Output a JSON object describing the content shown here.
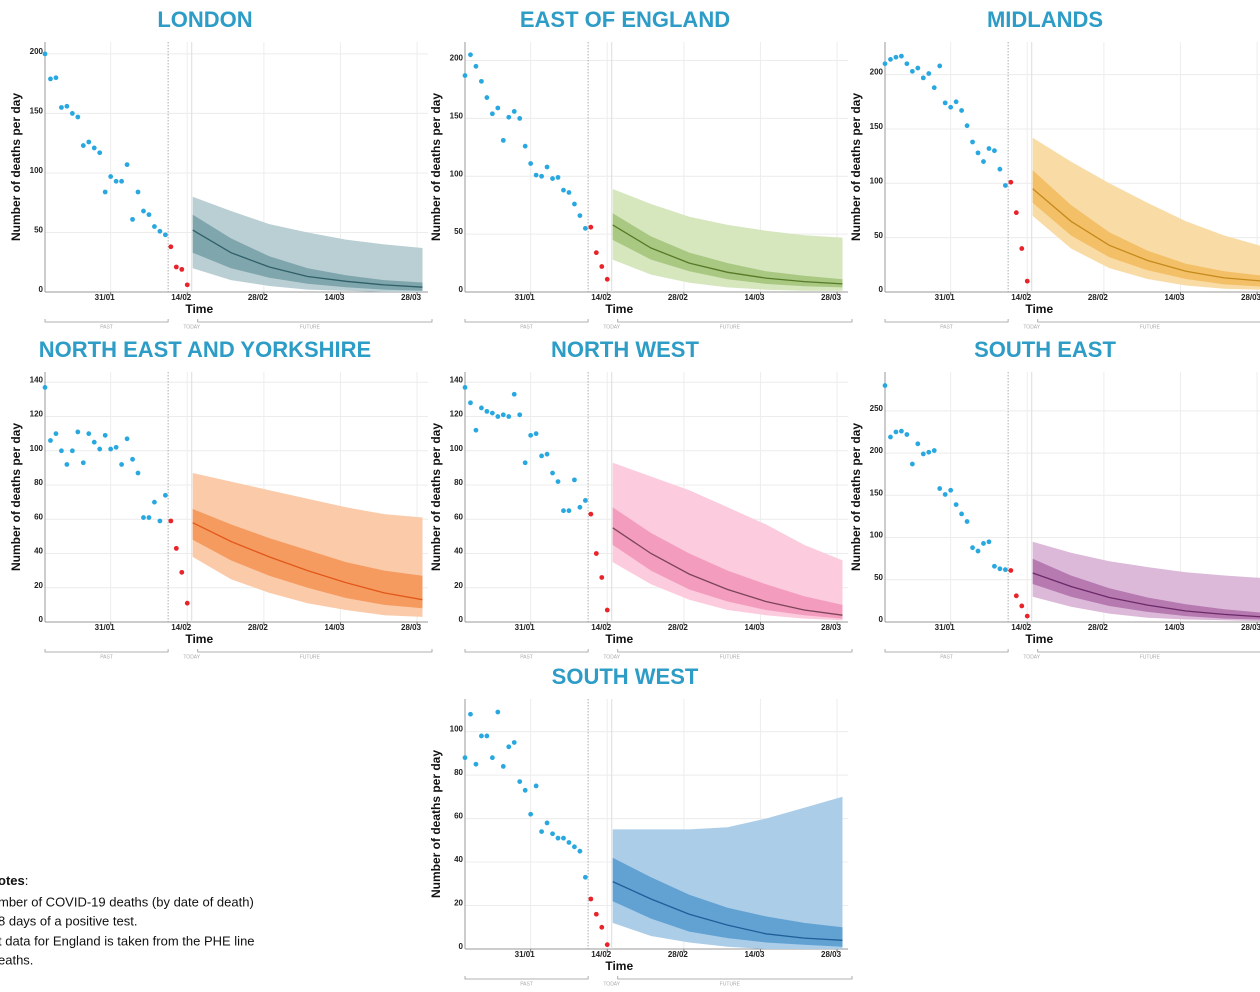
{
  "chart_data": [
    {
      "type": "projection",
      "title": "LONDON",
      "ylabel": "Number of deaths per day",
      "xlabel": "Time",
      "xlim": [
        19,
        89
      ],
      "ylim": [
        0,
        210
      ],
      "xticks": [
        {
          "value": 31,
          "label": "31/01"
        },
        {
          "value": 45,
          "label": "14/02"
        },
        {
          "value": 59,
          "label": "28/02"
        },
        {
          "value": 73,
          "label": "14/03"
        },
        {
          "value": 87,
          "label": "28/03"
        }
      ],
      "yticks": [
        0,
        50,
        100,
        150,
        200
      ],
      "observed": {
        "color": "#29a8e0",
        "x": [
          19,
          20,
          21,
          22,
          23,
          24,
          25,
          26,
          27,
          28,
          29,
          30,
          31,
          32,
          33,
          34,
          35,
          36,
          37,
          38,
          39,
          40,
          41
        ],
        "values": [
          200,
          179,
          180,
          155,
          156,
          150,
          147,
          123,
          126,
          121,
          117,
          84,
          97,
          93,
          93,
          107,
          61,
          84,
          68,
          65,
          55,
          51,
          48
        ]
      },
      "recent": {
        "color": "#e8232a",
        "x": [
          42,
          43,
          44,
          45
        ],
        "values": [
          38,
          21,
          19,
          6
        ]
      },
      "projection": {
        "x": [
          46,
          53,
          60,
          67,
          74,
          81,
          88
        ],
        "outer_color": "#b9cfd3",
        "inner_color": "#7fa6ad",
        "median_color": "#2f5f68",
        "outer_hi": [
          80,
          68,
          57,
          50,
          44,
          40,
          37
        ],
        "outer_lo": [
          20,
          10,
          5,
          2,
          1,
          0,
          0
        ],
        "inner_hi": [
          65,
          45,
          30,
          20,
          14,
          10,
          8
        ],
        "inner_lo": [
          33,
          20,
          12,
          7,
          4,
          2,
          1
        ],
        "median": [
          52,
          33,
          21,
          13,
          9,
          6,
          4
        ]
      },
      "period_labels": [
        "PAST",
        "TODAY",
        "FUTURE"
      ]
    },
    {
      "type": "projection",
      "title": "EAST OF ENGLAND",
      "ylabel": "Number of deaths per day",
      "xlabel": "Time",
      "xlim": [
        19,
        89
      ],
      "ylim": [
        0,
        216
      ],
      "xticks": [
        {
          "value": 31,
          "label": "31/01"
        },
        {
          "value": 45,
          "label": "14/02"
        },
        {
          "value": 59,
          "label": "28/02"
        },
        {
          "value": 73,
          "label": "14/03"
        },
        {
          "value": 87,
          "label": "28/03"
        }
      ],
      "yticks": [
        0,
        50,
        100,
        150,
        200
      ],
      "observed": {
        "color": "#29a8e0",
        "x": [
          19,
          20,
          21,
          22,
          23,
          24,
          25,
          26,
          27,
          28,
          29,
          30,
          31,
          32,
          33,
          34,
          35,
          36,
          37,
          38,
          39,
          40,
          41
        ],
        "values": [
          187,
          205,
          195,
          182,
          168,
          154,
          159,
          131,
          151,
          156,
          150,
          126,
          111,
          101,
          100,
          108,
          98,
          99,
          88,
          86,
          76,
          66,
          55
        ]
      },
      "recent": {
        "color": "#e8232a",
        "x": [
          42,
          43,
          44,
          45
        ],
        "values": [
          56,
          34,
          22,
          11
        ]
      },
      "projection": {
        "x": [
          46,
          53,
          60,
          67,
          74,
          81,
          88
        ],
        "outer_color": "#d6e6bd",
        "inner_color": "#a9c882",
        "median_color": "#557a28",
        "outer_hi": [
          89,
          76,
          65,
          58,
          53,
          49,
          47
        ],
        "outer_lo": [
          28,
          15,
          8,
          4,
          2,
          1,
          1
        ],
        "inner_hi": [
          68,
          48,
          34,
          25,
          18,
          14,
          11
        ],
        "inner_lo": [
          45,
          28,
          18,
          11,
          7,
          5,
          4
        ],
        "median": [
          58,
          38,
          25,
          17,
          12,
          9,
          7
        ]
      },
      "period_labels": [
        "PAST",
        "TODAY",
        "FUTURE"
      ]
    },
    {
      "type": "projection",
      "title": "MIDLANDS",
      "ylabel": "Number of deaths per day",
      "xlabel": "Time",
      "xlim": [
        19,
        89
      ],
      "ylim": [
        0,
        230
      ],
      "xticks": [
        {
          "value": 31,
          "label": "31/01"
        },
        {
          "value": 45,
          "label": "14/02"
        },
        {
          "value": 59,
          "label": "28/02"
        },
        {
          "value": 73,
          "label": "14/03"
        },
        {
          "value": 87,
          "label": "28/03"
        }
      ],
      "yticks": [
        0,
        50,
        100,
        150,
        200
      ],
      "observed": {
        "color": "#29a8e0",
        "x": [
          19,
          20,
          21,
          22,
          23,
          24,
          25,
          26,
          27,
          28,
          29,
          30,
          31,
          32,
          33,
          34,
          35,
          36,
          37,
          38,
          39,
          40,
          41
        ],
        "values": [
          210,
          214,
          216,
          217,
          210,
          203,
          206,
          197,
          201,
          188,
          208,
          174,
          170,
          175,
          167,
          153,
          138,
          128,
          120,
          132,
          130,
          113,
          98
        ]
      },
      "recent": {
        "color": "#e8232a",
        "x": [
          42,
          43,
          44,
          45
        ],
        "values": [
          101,
          73,
          40,
          10
        ]
      },
      "projection": {
        "x": [
          46,
          53,
          60,
          67,
          74,
          81,
          88
        ],
        "outer_color": "#f9dba5",
        "inner_color": "#f3c068",
        "median_color": "#c58a1c",
        "outer_hi": [
          142,
          120,
          100,
          82,
          65,
          52,
          42
        ],
        "outer_lo": [
          70,
          40,
          22,
          12,
          6,
          3,
          2
        ],
        "inner_hi": [
          112,
          80,
          55,
          38,
          26,
          19,
          15
        ],
        "inner_lo": [
          82,
          52,
          32,
          20,
          12,
          7,
          5
        ],
        "median": [
          95,
          65,
          43,
          29,
          19,
          13,
          10
        ]
      },
      "period_labels": [
        "PAST",
        "TODAY",
        "FUTURE"
      ]
    },
    {
      "type": "projection",
      "title": "NORTH EAST AND YORKSHIRE",
      "ylabel": "Number of deaths per day",
      "xlabel": "Time",
      "xlim": [
        19,
        89
      ],
      "ylim": [
        0,
        146
      ],
      "xticks": [
        {
          "value": 31,
          "label": "31/01"
        },
        {
          "value": 45,
          "label": "14/02"
        },
        {
          "value": 59,
          "label": "28/02"
        },
        {
          "value": 73,
          "label": "14/03"
        },
        {
          "value": 87,
          "label": "28/03"
        }
      ],
      "yticks": [
        0,
        20,
        40,
        60,
        80,
        100,
        120,
        140
      ],
      "observed": {
        "color": "#29a8e0",
        "x": [
          19,
          20,
          21,
          22,
          23,
          24,
          25,
          26,
          27,
          28,
          29,
          30,
          31,
          32,
          33,
          34,
          35,
          36,
          37,
          38,
          39,
          40,
          41
        ],
        "values": [
          137,
          106,
          110,
          100,
          92,
          100,
          111,
          93,
          110,
          105,
          101,
          109,
          101,
          102,
          92,
          107,
          95,
          87,
          61,
          61,
          70,
          59,
          74
        ]
      },
      "recent": {
        "color": "#e8232a",
        "x": [
          42,
          43,
          44,
          45
        ],
        "values": [
          59,
          43,
          29,
          11
        ]
      },
      "projection": {
        "x": [
          46,
          53,
          60,
          67,
          74,
          81,
          88
        ],
        "outer_color": "#fbcaa8",
        "inner_color": "#f59b60",
        "median_color": "#e2581a",
        "outer_hi": [
          87,
          82,
          77,
          72,
          67,
          63,
          61
        ],
        "outer_lo": [
          38,
          25,
          17,
          11,
          7,
          4,
          3
        ],
        "inner_hi": [
          66,
          57,
          49,
          42,
          35,
          30,
          27
        ],
        "inner_lo": [
          48,
          36,
          27,
          20,
          14,
          10,
          8
        ],
        "median": [
          58,
          47,
          38,
          30,
          23,
          17,
          13
        ]
      },
      "period_labels": [
        "PAST",
        "TODAY",
        "FUTURE"
      ]
    },
    {
      "type": "projection",
      "title": "NORTH WEST",
      "ylabel": "Number of deaths per day",
      "xlabel": "Time",
      "xlim": [
        19,
        89
      ],
      "ylim": [
        0,
        146
      ],
      "xticks": [
        {
          "value": 31,
          "label": "31/01"
        },
        {
          "value": 45,
          "label": "14/02"
        },
        {
          "value": 59,
          "label": "28/02"
        },
        {
          "value": 73,
          "label": "14/03"
        },
        {
          "value": 87,
          "label": "28/03"
        }
      ],
      "yticks": [
        0,
        20,
        40,
        60,
        80,
        100,
        120,
        140
      ],
      "observed": {
        "color": "#29a8e0",
        "x": [
          19,
          20,
          21,
          22,
          23,
          24,
          25,
          26,
          27,
          28,
          29,
          30,
          31,
          32,
          33,
          34,
          35,
          36,
          37,
          38,
          39,
          40,
          41
        ],
        "values": [
          137,
          128,
          112,
          125,
          123,
          122,
          120,
          121,
          120,
          133,
          121,
          93,
          109,
          110,
          97,
          98,
          87,
          82,
          65,
          65,
          83,
          67,
          71
        ]
      },
      "recent": {
        "color": "#e8232a",
        "x": [
          42,
          43,
          44,
          45
        ],
        "values": [
          63,
          40,
          26,
          7
        ]
      },
      "projection": {
        "x": [
          46,
          53,
          60,
          67,
          74,
          81,
          88
        ],
        "outer_color": "#fccbdd",
        "inner_color": "#f49cbd",
        "median_color": "#7b4558",
        "outer_hi": [
          93,
          85,
          77,
          67,
          57,
          45,
          36
        ],
        "outer_lo": [
          35,
          22,
          13,
          7,
          4,
          2,
          1
        ],
        "inner_hi": [
          67,
          52,
          40,
          30,
          22,
          15,
          10
        ],
        "inner_lo": [
          45,
          30,
          19,
          12,
          7,
          4,
          2
        ],
        "median": [
          55,
          40,
          28,
          19,
          12,
          7,
          4
        ]
      },
      "period_labels": [
        "PAST",
        "TODAY",
        "FUTURE"
      ]
    },
    {
      "type": "projection",
      "title": "SOUTH EAST",
      "ylabel": "Number of deaths per day",
      "xlabel": "Time",
      "xlim": [
        19,
        89
      ],
      "ylim": [
        0,
        296
      ],
      "xticks": [
        {
          "value": 31,
          "label": "31/01"
        },
        {
          "value": 45,
          "label": "14/02"
        },
        {
          "value": 59,
          "label": "28/02"
        },
        {
          "value": 73,
          "label": "14/03"
        },
        {
          "value": 87,
          "label": "28/03"
        }
      ],
      "yticks": [
        0,
        50,
        100,
        150,
        200,
        250
      ],
      "observed": {
        "color": "#29a8e0",
        "x": [
          19,
          20,
          21,
          22,
          23,
          24,
          25,
          26,
          27,
          28,
          29,
          30,
          31,
          32,
          33,
          34,
          35,
          36,
          37,
          38,
          39,
          40,
          41
        ],
        "values": [
          280,
          219,
          225,
          226,
          222,
          187,
          211,
          199,
          201,
          203,
          158,
          151,
          156,
          139,
          128,
          119,
          88,
          84,
          93,
          95,
          66,
          63,
          62
        ]
      },
      "recent": {
        "color": "#e8232a",
        "x": [
          42,
          43,
          44,
          45
        ],
        "values": [
          61,
          31,
          19,
          7
        ]
      },
      "projection": {
        "x": [
          46,
          53,
          60,
          67,
          74,
          81,
          88
        ],
        "outer_color": "#dcb9d9",
        "inner_color": "#b67ab1",
        "median_color": "#6c2968",
        "outer_hi": [
          95,
          82,
          72,
          65,
          59,
          55,
          52
        ],
        "outer_lo": [
          30,
          18,
          10,
          5,
          3,
          2,
          1
        ],
        "inner_hi": [
          75,
          55,
          40,
          29,
          21,
          15,
          11
        ],
        "inner_lo": [
          45,
          30,
          19,
          12,
          7,
          4,
          3
        ],
        "median": [
          58,
          42,
          29,
          20,
          13,
          9,
          6
        ]
      },
      "period_labels": [
        "PAST",
        "TODAY",
        "FUTURE"
      ]
    },
    {
      "type": "projection",
      "title": "SOUTH WEST",
      "ylabel": "Number of deaths per day",
      "xlabel": "Time",
      "xlim": [
        19,
        89
      ],
      "ylim": [
        0,
        115
      ],
      "xticks": [
        {
          "value": 31,
          "label": "31/01"
        },
        {
          "value": 45,
          "label": "14/02"
        },
        {
          "value": 59,
          "label": "28/02"
        },
        {
          "value": 73,
          "label": "14/03"
        },
        {
          "value": 87,
          "label": "28/03"
        }
      ],
      "yticks": [
        0,
        20,
        40,
        60,
        80,
        100
      ],
      "observed": {
        "color": "#29a8e0",
        "x": [
          19,
          20,
          21,
          22,
          23,
          24,
          25,
          26,
          27,
          28,
          29,
          30,
          31,
          32,
          33,
          34,
          35,
          36,
          37,
          38,
          39,
          40,
          41
        ],
        "values": [
          88,
          108,
          85,
          98,
          98,
          88,
          109,
          84,
          93,
          95,
          77,
          73,
          62,
          75,
          54,
          58,
          53,
          51,
          51,
          49,
          47,
          45,
          33
        ]
      },
      "recent": {
        "color": "#e8232a",
        "x": [
          42,
          43,
          44,
          45
        ],
        "values": [
          23,
          16,
          10,
          2
        ]
      },
      "projection": {
        "x": [
          46,
          53,
          60,
          67,
          74,
          81,
          88
        ],
        "outer_color": "#abcde8",
        "inner_color": "#62a2d3",
        "median_color": "#1f5e98",
        "outer_hi": [
          55,
          55,
          55,
          56,
          60,
          65,
          70
        ],
        "outer_lo": [
          12,
          6,
          3,
          1,
          0,
          0,
          0
        ],
        "inner_hi": [
          42,
          33,
          25,
          19,
          15,
          12,
          10
        ],
        "inner_lo": [
          22,
          14,
          8,
          5,
          3,
          2,
          1
        ],
        "median": [
          31,
          23,
          16,
          11,
          7,
          5,
          4
        ]
      },
      "period_labels": [
        "PAST",
        "TODAY",
        "FUTURE"
      ]
    }
  ],
  "notes": {
    "title": "otes",
    "colon": ":",
    "lines": [
      "mber of COVID-19 deaths (by date of death)",
      "8 days of a positive test.",
      "t data for England is taken from the PHE line",
      "eaths."
    ]
  }
}
